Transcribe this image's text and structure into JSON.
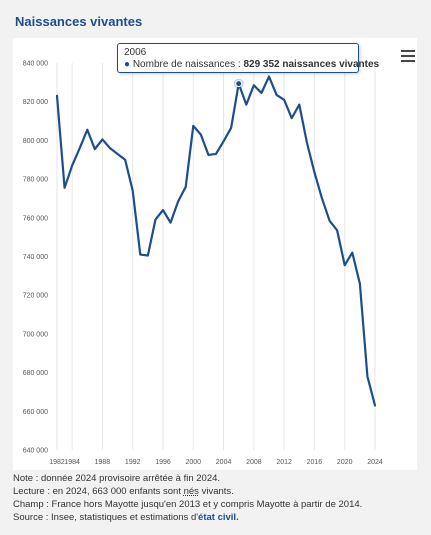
{
  "page": {
    "title": "Naissances vivantes"
  },
  "tooltip": {
    "year": "2006",
    "series_label": "Nombre de naissances : ",
    "value_text": "829 352 naissances vivantes"
  },
  "notes": {
    "note": "Note : donnée 2024 provisoire arrêtée à fin 2024.",
    "lecture_prefix": "Lecture : en 2024, 663 000 enfants sont ",
    "lecture_word": "nés",
    "lecture_suffix": " vivants.",
    "champ": "Champ : France hors Mayotte jusqu'en 2013 et y compris Mayotte à partir de 2014.",
    "source_prefix": "Source : Insee, statistiques et estimations d'",
    "source_link": "état civil."
  },
  "colors": {
    "line": "#1d4d8c",
    "grid": "#e6e6e6",
    "title": "#1d4d8c"
  },
  "icons": {
    "menu": "hamburger-menu-icon"
  },
  "chart_data": {
    "type": "line",
    "title": "Naissances vivantes",
    "xlabel": "",
    "ylabel": "",
    "x": [
      1982,
      1983,
      1984,
      1985,
      1986,
      1987,
      1988,
      1989,
      1990,
      1991,
      1992,
      1993,
      1994,
      1995,
      1996,
      1997,
      1998,
      1999,
      2000,
      2001,
      2002,
      2003,
      2004,
      2005,
      2006,
      2007,
      2008,
      2009,
      2010,
      2011,
      2012,
      2013,
      2014,
      2015,
      2016,
      2017,
      2018,
      2019,
      2020,
      2021,
      2022,
      2023,
      2024
    ],
    "series": [
      {
        "values": [
          823000,
          775500,
          787000,
          796000,
          805500,
          795500,
          800500,
          796000,
          793000,
          790000,
          774000,
          741000,
          740500,
          759000,
          764000,
          757500,
          768500,
          776000,
          807500,
          803000,
          792500,
          793000,
          799500,
          806500,
          829352,
          818500,
          828500,
          824500,
          833000,
          823500,
          821000,
          811500,
          818500,
          799000,
          783500,
          770000,
          758500,
          753500,
          735500,
          742000,
          726000,
          678000,
          663000
        ]
      }
    ],
    "xticks": [
      "1982",
      "1984",
      "1988",
      "1992",
      "1996",
      "2000",
      "2004",
      "2008",
      "2012",
      "2016",
      "2020",
      "2024"
    ],
    "xtick_values": [
      1982,
      1984,
      1988,
      1992,
      1996,
      2000,
      2004,
      2008,
      2012,
      2016,
      2020,
      2024
    ],
    "yticks": [
      "640 000",
      "660 000",
      "680 000",
      "700 000",
      "720 000",
      "740 000",
      "760 000",
      "780 000",
      "800 000",
      "820 000",
      "840 000"
    ],
    "ytick_values": [
      640000,
      660000,
      680000,
      700000,
      720000,
      740000,
      760000,
      780000,
      800000,
      820000,
      840000
    ],
    "ylim": [
      640000,
      840000
    ],
    "xlim": [
      1982,
      2024
    ],
    "grid": "vertical",
    "legend": "none",
    "highlight_x": 2006
  }
}
